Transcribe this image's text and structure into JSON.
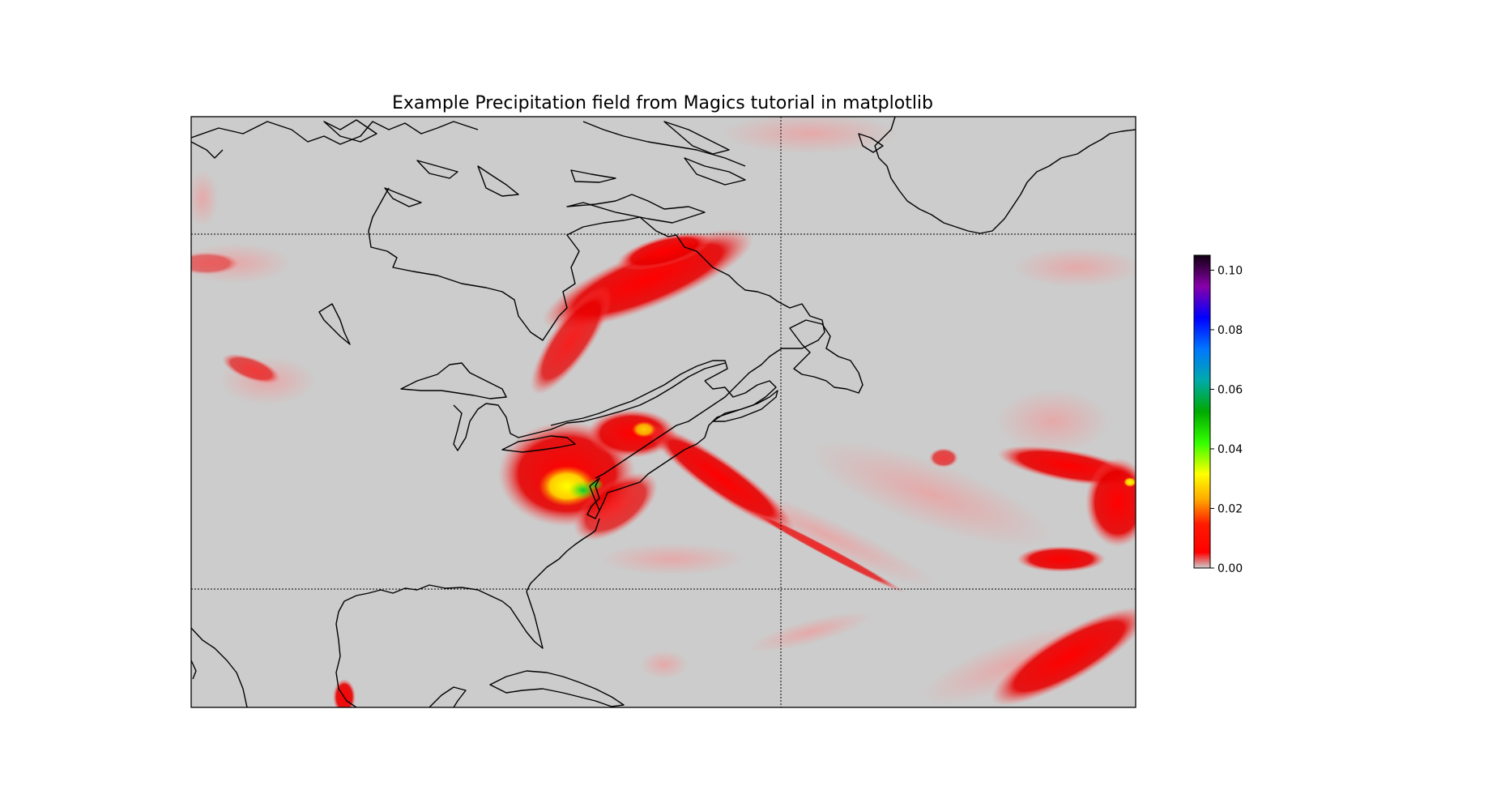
{
  "title": "Example Precipitation field from Magics tutorial in matplotlib",
  "map": {
    "background_color": "#cccccc",
    "gridlines": "dotted",
    "coastline_color": "#000000"
  },
  "colorbar": {
    "min": 0.0,
    "max": 0.105,
    "ticks": [
      {
        "value": 0.0,
        "label": "0.00"
      },
      {
        "value": 0.02,
        "label": "0.02"
      },
      {
        "value": 0.04,
        "label": "0.04"
      },
      {
        "value": 0.06,
        "label": "0.06"
      },
      {
        "value": 0.08,
        "label": "0.08"
      },
      {
        "value": 0.1,
        "label": "0.10"
      }
    ],
    "colormap": [
      "#cccccc",
      "#ff0000",
      "#ffaa00",
      "#ffff00",
      "#00ff00",
      "#00aa00",
      "#00aaff",
      "#0000ff",
      "#8800aa",
      "#110011"
    ]
  }
}
